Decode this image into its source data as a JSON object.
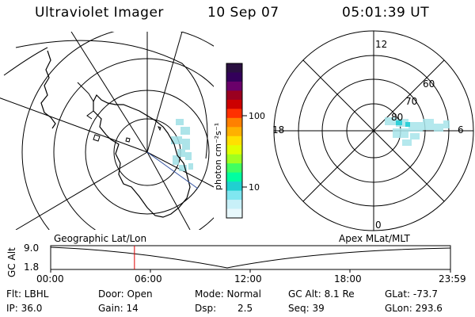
{
  "header": {
    "app_title": "Ultraviolet Imager",
    "date": "10 Sep 07",
    "time": "05:01:39 UT"
  },
  "geo_map": {
    "label": "Geographic Lat/Lon",
    "land_color": "#000000",
    "aurora_color": "#9fe0e6"
  },
  "colorbar": {
    "unit_label": "photon cm⁻²s⁻¹",
    "ticks": [
      {
        "value": 100,
        "label": "100"
      },
      {
        "value": 10,
        "label": "10"
      }
    ],
    "colors": [
      "#2a1040",
      "#33005a",
      "#6a006a",
      "#9a0020",
      "#cc0000",
      "#ff3000",
      "#ff8000",
      "#ffb000",
      "#ffe000",
      "#e0ff00",
      "#a0ff20",
      "#40ff60",
      "#00ffa0",
      "#20d0d0",
      "#80e6f0",
      "#c8f0f8",
      "#e8f8fc"
    ]
  },
  "mlt_plot": {
    "label": "Apex MLat/MLT",
    "lat_labels": [
      "60",
      "70",
      "80"
    ],
    "mlt_labels": {
      "top": "12",
      "bottom": "0",
      "left": "18",
      "right": "6"
    }
  },
  "timeline": {
    "axis_label": "GC Alt",
    "ytick_labels": [
      "9.0",
      "1.8"
    ],
    "xtick_labels": [
      "00:00",
      "06:00",
      "12:00",
      "18:00",
      "23:59"
    ],
    "current_marker_hour": 5.03
  },
  "status": {
    "filter": "Flt: LBHL",
    "door": "Door: Open",
    "mode": "Mode: Normal",
    "gc_alt": "GC Alt: 8.1 Re",
    "glat": "GLat: -73.7",
    "ip": "IP: 36.0",
    "gain": "Gain: 14",
    "dsp_label": "Dsp:",
    "dsp_value": "2.5",
    "seq": "Seq: 39",
    "glon": "GLon: 293.6"
  }
}
